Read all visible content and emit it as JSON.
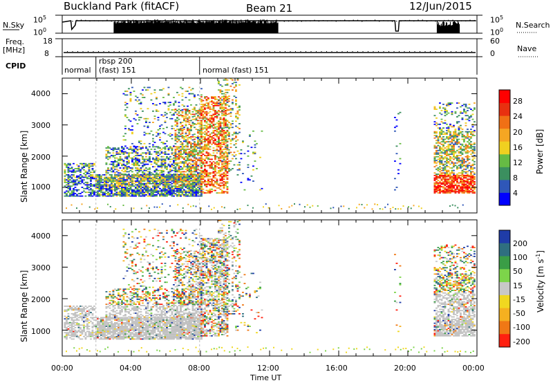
{
  "header": {
    "site": "Buckland Park (fitACF)",
    "beam": "Beam 21",
    "date": "12/Jun/2015"
  },
  "strip": {
    "nsky_label": "N.Sky",
    "nsky_ticks": [
      "10^5",
      "10^0"
    ],
    "nsearch_label": "N.Search",
    "nsearch_ticks": [
      "10^5",
      "10^0"
    ],
    "freq_label_1": "Freq.",
    "freq_label_2": "[MHz]",
    "freq_ticks": [
      "18",
      "8"
    ],
    "nave_label": "Nave",
    "nave_ticks": [
      "60",
      "0"
    ],
    "cpid_label": "CPID",
    "cpid_segments": [
      {
        "name": "normal",
        "start_hour": 0,
        "end_hour": 1.95
      },
      {
        "name": "rbsp 200\n(fast) 151",
        "start_hour": 1.95,
        "end_hour": 7.95
      },
      {
        "name": "normal (fast) 151",
        "start_hour": 7.95,
        "end_hour": 24
      }
    ],
    "cpid_labels": [
      "normal",
      "rbsp 200",
      "(fast) 151",
      "normal (fast) 151"
    ]
  },
  "colors": {
    "power_scale": [
      "#0000ff",
      "#2f57b8",
      "#3b8f5f",
      "#66bb44",
      "#f0d020",
      "#f5a623",
      "#f07015",
      "#e83010",
      "#ff0000"
    ],
    "velocity_scale": [
      "#1f3ca8",
      "#2f6f7f",
      "#3a9d46",
      "#7dd44a",
      "#c8c8c8",
      "#f0d820",
      "#f5b020",
      "#f07815",
      "#ff2010"
    ],
    "ground_scatter": "#c0c0c0"
  },
  "chart_data": [
    {
      "type": "heatmap",
      "name": "power-panel",
      "xlabel": "",
      "ylabel": "Slant Range [km]",
      "xlim_hours": [
        0,
        24
      ],
      "ylim": [
        180,
        4500
      ],
      "ytick_labels": [
        "1000",
        "2000",
        "3000",
        "4000"
      ],
      "ytick_values": [
        1000,
        2000,
        3000,
        4000
      ],
      "colorbar_label": "Power [dB]",
      "colorbar_ticks": [
        "4",
        "8",
        "12",
        "16",
        "20",
        "24",
        "28"
      ],
      "colorbar_range": [
        0,
        32
      ]
    },
    {
      "type": "heatmap",
      "name": "velocity-panel",
      "xlabel": "Time UT",
      "ylabel": "Slant Range [km]",
      "xlim_hours": [
        0,
        24
      ],
      "ylim": [
        180,
        4500
      ],
      "ytick_labels": [
        "1000",
        "2000",
        "3000",
        "4000"
      ],
      "ytick_values": [
        1000,
        2000,
        3000,
        4000
      ],
      "xtick_labels": [
        "00:00",
        "04:00",
        "08:00",
        "12:00",
        "16:00",
        "20:00",
        "00:00"
      ],
      "colorbar_label": "Velocity [m s^-1]",
      "colorbar_ticks": [
        "200",
        "100",
        "50",
        "15",
        "-15",
        "-50",
        "-100",
        "-200"
      ]
    }
  ]
}
